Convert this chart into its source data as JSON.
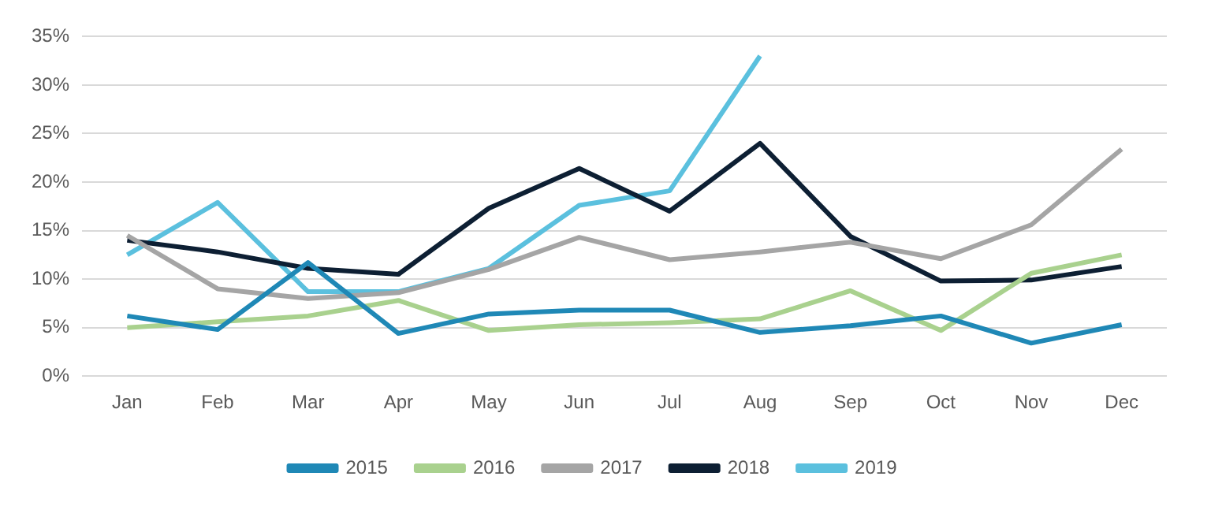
{
  "chart_data": {
    "type": "line",
    "categories": [
      "Jan",
      "Feb",
      "Mar",
      "Apr",
      "May",
      "Jun",
      "Jul",
      "Aug",
      "Sep",
      "Oct",
      "Nov",
      "Dec"
    ],
    "series": [
      {
        "name": "2015",
        "color": "#1f88b6",
        "values": [
          6.2,
          4.8,
          11.7,
          4.4,
          6.4,
          6.8,
          6.8,
          4.5,
          5.2,
          6.2,
          3.4,
          5.3
        ]
      },
      {
        "name": "2016",
        "color": "#a9d18e",
        "values": [
          5.0,
          5.6,
          6.2,
          7.8,
          4.7,
          5.3,
          5.5,
          5.9,
          8.8,
          4.7,
          10.6,
          12.5
        ]
      },
      {
        "name": "2017",
        "color": "#a5a5a5",
        "values": [
          14.5,
          9.0,
          8.0,
          8.6,
          11.0,
          14.3,
          12.0,
          12.8,
          13.8,
          12.1,
          15.6,
          23.4
        ]
      },
      {
        "name": "2018",
        "color": "#0d1f33",
        "values": [
          14.0,
          12.8,
          11.1,
          10.5,
          17.3,
          21.4,
          17.0,
          24.0,
          14.4,
          9.8,
          9.9,
          11.3
        ]
      },
      {
        "name": "2019",
        "color": "#5bc0de",
        "values": [
          12.5,
          17.9,
          8.7,
          8.7,
          11.1,
          17.6,
          19.1,
          33.0,
          null,
          null,
          null,
          null
        ]
      }
    ],
    "ylim": [
      0,
      35
    ],
    "yticks": [
      {
        "value": 0,
        "label": "0%"
      },
      {
        "value": 5,
        "label": "5%"
      },
      {
        "value": 10,
        "label": "10%"
      },
      {
        "value": 15,
        "label": "15%"
      },
      {
        "value": 20,
        "label": "20%"
      },
      {
        "value": 25,
        "label": "25%"
      },
      {
        "value": 30,
        "label": "30%"
      },
      {
        "value": 35,
        "label": "35%"
      }
    ],
    "grid": "y",
    "legend": "bottom",
    "marker": "none",
    "line_style": "solid"
  }
}
